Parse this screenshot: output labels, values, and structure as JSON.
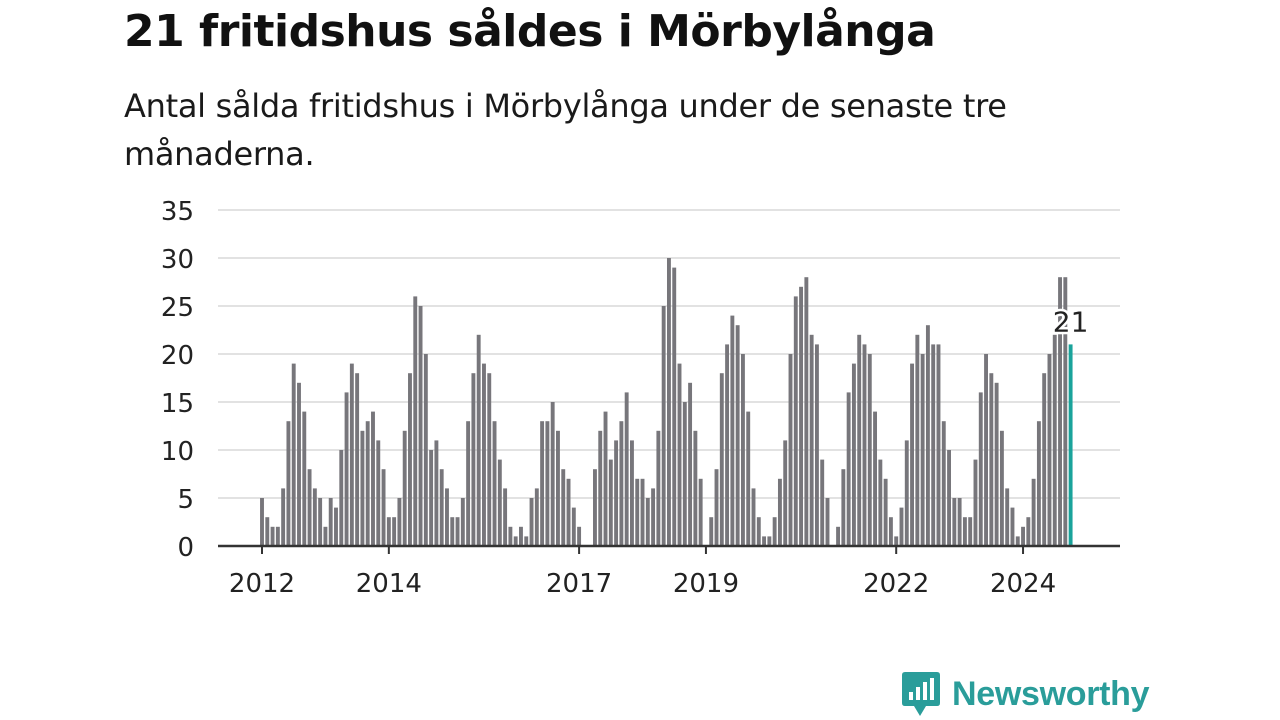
{
  "title": "21 fritidshus såldes i Mörbylånga",
  "subtitle": "Antal sålda fritidshus i Mörbylånga under de senaste tre månaderna.",
  "brand": {
    "name": "Newsworthy",
    "color": "#2a9d9a",
    "icon": "newsworthy-chart-bubble-icon"
  },
  "chart_data": {
    "type": "bar",
    "start_month": "2012-01",
    "frequency": "monthly",
    "y_ticks": [
      0,
      5,
      10,
      15,
      20,
      25,
      30,
      35
    ],
    "ylim": [
      0,
      35
    ],
    "x_ticks": [
      "2012",
      "2014",
      "2017",
      "2019",
      "2022",
      "2024"
    ],
    "grid": true,
    "highlight_label": "21",
    "colors": {
      "bar": "#77767b",
      "highlight": "#1aa39b",
      "grid": "#d9d9d9",
      "axis": "#333333"
    },
    "values": [
      5,
      3,
      2,
      2,
      6,
      13,
      19,
      17,
      14,
      8,
      6,
      5,
      2,
      5,
      4,
      10,
      16,
      19,
      18,
      12,
      13,
      14,
      11,
      8,
      3,
      3,
      5,
      12,
      18,
      26,
      25,
      20,
      10,
      11,
      8,
      6,
      3,
      3,
      5,
      13,
      18,
      22,
      19,
      18,
      13,
      9,
      6,
      2,
      1,
      2,
      1,
      5,
      6,
      13,
      13,
      15,
      12,
      8,
      7,
      4,
      2,
      0,
      0,
      8,
      12,
      14,
      9,
      11,
      13,
      16,
      11,
      7,
      7,
      5,
      6,
      12,
      25,
      30,
      29,
      19,
      15,
      17,
      12,
      7,
      0,
      3,
      8,
      18,
      21,
      24,
      23,
      20,
      14,
      6,
      3,
      1,
      1,
      3,
      7,
      11,
      20,
      26,
      27,
      28,
      22,
      21,
      9,
      5,
      0,
      2,
      8,
      16,
      19,
      22,
      21,
      20,
      14,
      9,
      7,
      3,
      1,
      4,
      11,
      19,
      22,
      20,
      23,
      21,
      21,
      13,
      10,
      5,
      5,
      3,
      3,
      9,
      16,
      20,
      18,
      17,
      12,
      6,
      4,
      1,
      2,
      3,
      7,
      13,
      18,
      20,
      22,
      28,
      28,
      21
    ]
  }
}
